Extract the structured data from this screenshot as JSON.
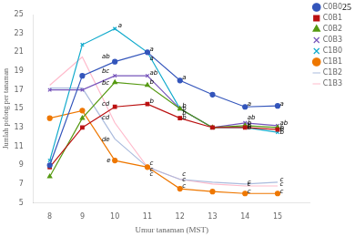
{
  "chart_data": {
    "type": "line",
    "x_label": "Umur tanaman (MST)",
    "y_label": "Jumlah polong per tanaman",
    "page_number": "25",
    "x": [
      8,
      9,
      10,
      11,
      12,
      13,
      14,
      15
    ],
    "series": [
      {
        "name": "C0B0",
        "color": "#3355BB",
        "marker": "circle",
        "values": [
          9.0,
          18.5,
          20.0,
          21.0,
          18.0,
          16.5,
          15.2,
          15.3
        ]
      },
      {
        "name": "C0B1",
        "color": "#BB1111",
        "marker": "square",
        "values": [
          8.8,
          13.0,
          15.2,
          15.5,
          14.0,
          13.0,
          13.0,
          12.8
        ]
      },
      {
        "name": "C0B2",
        "color": "#559911",
        "marker": "triangle",
        "values": [
          7.8,
          14.0,
          17.8,
          17.5,
          15.0,
          13.0,
          13.2,
          13.0
        ]
      },
      {
        "name": "C0B3",
        "color": "#7755BB",
        "marker": "cross",
        "values": [
          17.0,
          17.0,
          18.5,
          18.5,
          15.0,
          13.0,
          13.5,
          13.2
        ]
      },
      {
        "name": "C1B0",
        "color": "#11AACC",
        "marker": "cross",
        "values": [
          9.5,
          21.8,
          23.5,
          21.0,
          15.0,
          13.0,
          13.0,
          12.5
        ]
      },
      {
        "name": "C1B1",
        "color": "#EE7700",
        "marker": "circle",
        "values": [
          14.0,
          14.8,
          9.5,
          8.8,
          6.5,
          6.2,
          6.0,
          6.0
        ]
      },
      {
        "name": "C1B2",
        "color": "#AABBDD",
        "marker": "none",
        "values": [
          17.2,
          17.2,
          11.8,
          8.8,
          7.5,
          7.2,
          7.0,
          7.2
        ]
      },
      {
        "name": "C1B3",
        "color": "#FFBBCC",
        "marker": "none",
        "values": [
          17.5,
          20.5,
          13.5,
          8.8,
          7.5,
          7.0,
          6.8,
          6.8
        ]
      }
    ],
    "xlim": [
      7.5,
      16.0
    ],
    "xticks": [
      8,
      9,
      10,
      11,
      12,
      13,
      14,
      15
    ],
    "ylim": [
      5,
      25
    ],
    "yticks": [
      5,
      7,
      9,
      11,
      13,
      15,
      17,
      19,
      21,
      23,
      25
    ],
    "grid": false,
    "legend": "right",
    "annotations": [
      {
        "x": 10.1,
        "y": 23.8,
        "text": "a"
      },
      {
        "x": 9.6,
        "y": 20.5,
        "text": "ab"
      },
      {
        "x": 9.6,
        "y": 19.0,
        "text": "bc"
      },
      {
        "x": 9.6,
        "y": 17.7,
        "text": "bc"
      },
      {
        "x": 9.6,
        "y": 15.5,
        "text": "cd"
      },
      {
        "x": 9.6,
        "y": 14.0,
        "text": "cd"
      },
      {
        "x": 9.6,
        "y": 11.7,
        "text": "de"
      },
      {
        "x": 9.75,
        "y": 9.5,
        "text": "e"
      },
      {
        "x": 11.07,
        "y": 21.3,
        "text": "a"
      },
      {
        "x": 11.07,
        "y": 20.3,
        "text": "a"
      },
      {
        "x": 11.07,
        "y": 18.8,
        "text": "ab"
      },
      {
        "x": 11.07,
        "y": 17.8,
        "text": "b"
      },
      {
        "x": 11.07,
        "y": 15.8,
        "text": "b"
      },
      {
        "x": 11.07,
        "y": 9.2,
        "text": "c"
      },
      {
        "x": 11.07,
        "y": 8.5,
        "text": "c"
      },
      {
        "x": 11.07,
        "y": 8.0,
        "text": "c"
      },
      {
        "x": 12.07,
        "y": 18.3,
        "text": "a"
      },
      {
        "x": 12.07,
        "y": 15.3,
        "text": "b"
      },
      {
        "x": 12.07,
        "y": 15.0,
        "text": "b"
      },
      {
        "x": 12.07,
        "y": 14.5,
        "text": "b"
      },
      {
        "x": 12.07,
        "y": 14.0,
        "text": "b"
      },
      {
        "x": 12.07,
        "y": 8.0,
        "text": "c"
      },
      {
        "x": 12.07,
        "y": 7.5,
        "text": "c"
      },
      {
        "x": 12.07,
        "y": 6.8,
        "text": "c"
      },
      {
        "x": 14.07,
        "y": 15.5,
        "text": "a"
      },
      {
        "x": 14.07,
        "y": 14.0,
        "text": "ab"
      },
      {
        "x": 14.07,
        "y": 13.5,
        "text": "b"
      },
      {
        "x": 14.07,
        "y": 13.2,
        "text": "b"
      },
      {
        "x": 14.07,
        "y": 13.0,
        "text": "b"
      },
      {
        "x": 14.07,
        "y": 7.2,
        "text": "c"
      },
      {
        "x": 14.07,
        "y": 7.0,
        "text": "c"
      },
      {
        "x": 14.07,
        "y": 6.2,
        "text": "c"
      },
      {
        "x": 15.07,
        "y": 15.5,
        "text": "a"
      },
      {
        "x": 15.07,
        "y": 13.5,
        "text": "ab"
      },
      {
        "x": 15.07,
        "y": 13.0,
        "text": "b"
      },
      {
        "x": 15.07,
        "y": 12.8,
        "text": "b"
      },
      {
        "x": 15.07,
        "y": 12.5,
        "text": "b"
      },
      {
        "x": 15.07,
        "y": 7.5,
        "text": "c"
      },
      {
        "x": 15.07,
        "y": 7.0,
        "text": "c"
      },
      {
        "x": 15.07,
        "y": 6.2,
        "text": "c"
      }
    ]
  }
}
